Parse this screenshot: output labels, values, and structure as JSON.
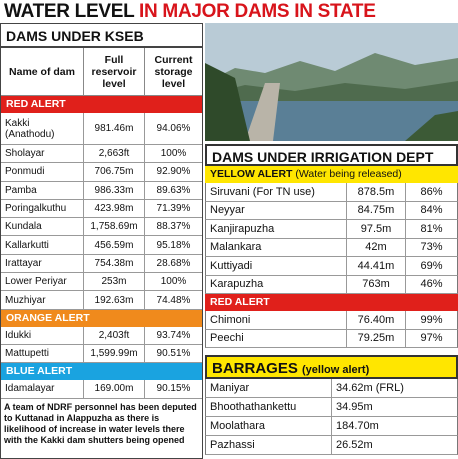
{
  "title": {
    "lead": "WATER LEVEL",
    "rest": "IN MAJOR DAMS IN STATE"
  },
  "kseb": {
    "heading": "DAMS UNDER KSEB",
    "columns": [
      "Name of dam",
      "Full reservoir level",
      "Current storage level"
    ],
    "sections": [
      {
        "alert": "RED ALERT",
        "color": "#e0201b",
        "rows": [
          [
            "Kakki (Anathodu)",
            "981.46m",
            "94.06%"
          ],
          [
            "Sholayar",
            "2,663ft",
            "100%"
          ],
          [
            "Ponmudi",
            "706.75m",
            "92.90%"
          ],
          [
            "Pamba",
            "986.33m",
            "89.63%"
          ],
          [
            "Poringalkuthu",
            "423.98m",
            "71.39%"
          ],
          [
            "Kundala",
            "1,758.69m",
            "88.37%"
          ],
          [
            "Kallarkutti",
            "456.59m",
            "95.18%"
          ],
          [
            "Irattayar",
            "754.38m",
            "28.68%"
          ],
          [
            "Lower Periyar",
            "253m",
            "100%"
          ],
          [
            "Muzhiyar",
            "192.63m",
            "74.48%"
          ]
        ]
      },
      {
        "alert": "ORANGE ALERT",
        "color": "#f08a1c",
        "rows": [
          [
            "Idukki",
            "2,403ft",
            "93.74%"
          ],
          [
            "Mattupetti",
            "1,599.99m",
            "90.51%"
          ]
        ]
      },
      {
        "alert": "BLUE ALERT",
        "color": "#1aa3e0",
        "rows": [
          [
            "Idamalayar",
            "169.00m",
            "90.15%"
          ]
        ]
      }
    ],
    "note": "A team of NDRF personnel has been deputed to Kuttanad in Alappuzha as there is likelihood of increase in water levels there with the Kakki dam shutters being opened"
  },
  "irrigation": {
    "heading": "DAMS UNDER IRRIGATION DEPT",
    "sections": [
      {
        "alert": "YELLOW ALERT",
        "alert_note": "(Water being released)",
        "color": "#ffe600",
        "rows": [
          [
            "Siruvani (For TN use)",
            "878.5m",
            "86%"
          ],
          [
            "Neyyar",
            "84.75m",
            "84%"
          ],
          [
            "Kanjirapuzha",
            "97.5m",
            "81%"
          ],
          [
            "Malankara",
            "42m",
            "73%"
          ],
          [
            "Kuttiyadi",
            "44.41m",
            "69%"
          ],
          [
            "Karapuzha",
            "763m",
            "46%"
          ]
        ]
      },
      {
        "alert": "RED ALERT",
        "color": "#e0201b",
        "rows": [
          [
            "Chimoni",
            "76.40m",
            "99%"
          ],
          [
            "Peechi",
            "79.25m",
            "97%"
          ]
        ]
      }
    ]
  },
  "barrages": {
    "heading": "BARRAGES",
    "heading_note": "(yellow alert)",
    "color": "#ffe600",
    "rows": [
      [
        "Maniyar",
        "34.62m (FRL)"
      ],
      [
        "Bhoothathankettu",
        "34.95m"
      ],
      [
        "Moolathara",
        "184.70m"
      ],
      [
        "Pazhassi",
        "26.52m"
      ]
    ]
  }
}
